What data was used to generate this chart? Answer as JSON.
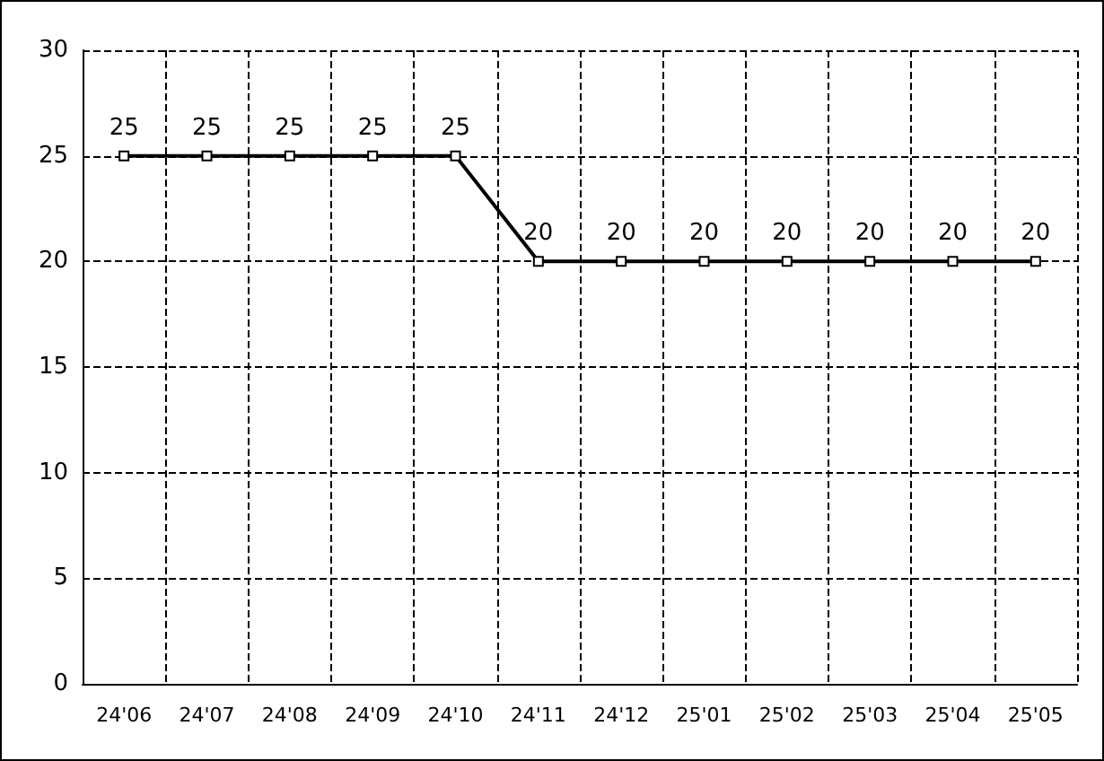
{
  "chart_data": {
    "type": "line",
    "categories": [
      "24'06",
      "24'07",
      "24'08",
      "24'09",
      "24'10",
      "24'11",
      "24'12",
      "25'01",
      "25'02",
      "25'03",
      "25'04",
      "25'05"
    ],
    "series": [
      {
        "color": "#000000",
        "values": [
          25,
          25,
          25,
          25,
          25,
          20,
          20,
          20,
          20,
          20,
          20,
          20
        ]
      }
    ],
    "ylim": [
      0,
      30
    ],
    "yticks": [
      0,
      5,
      10,
      15,
      20,
      25,
      30
    ],
    "grid": true,
    "marker": "square",
    "data_labels": true
  }
}
